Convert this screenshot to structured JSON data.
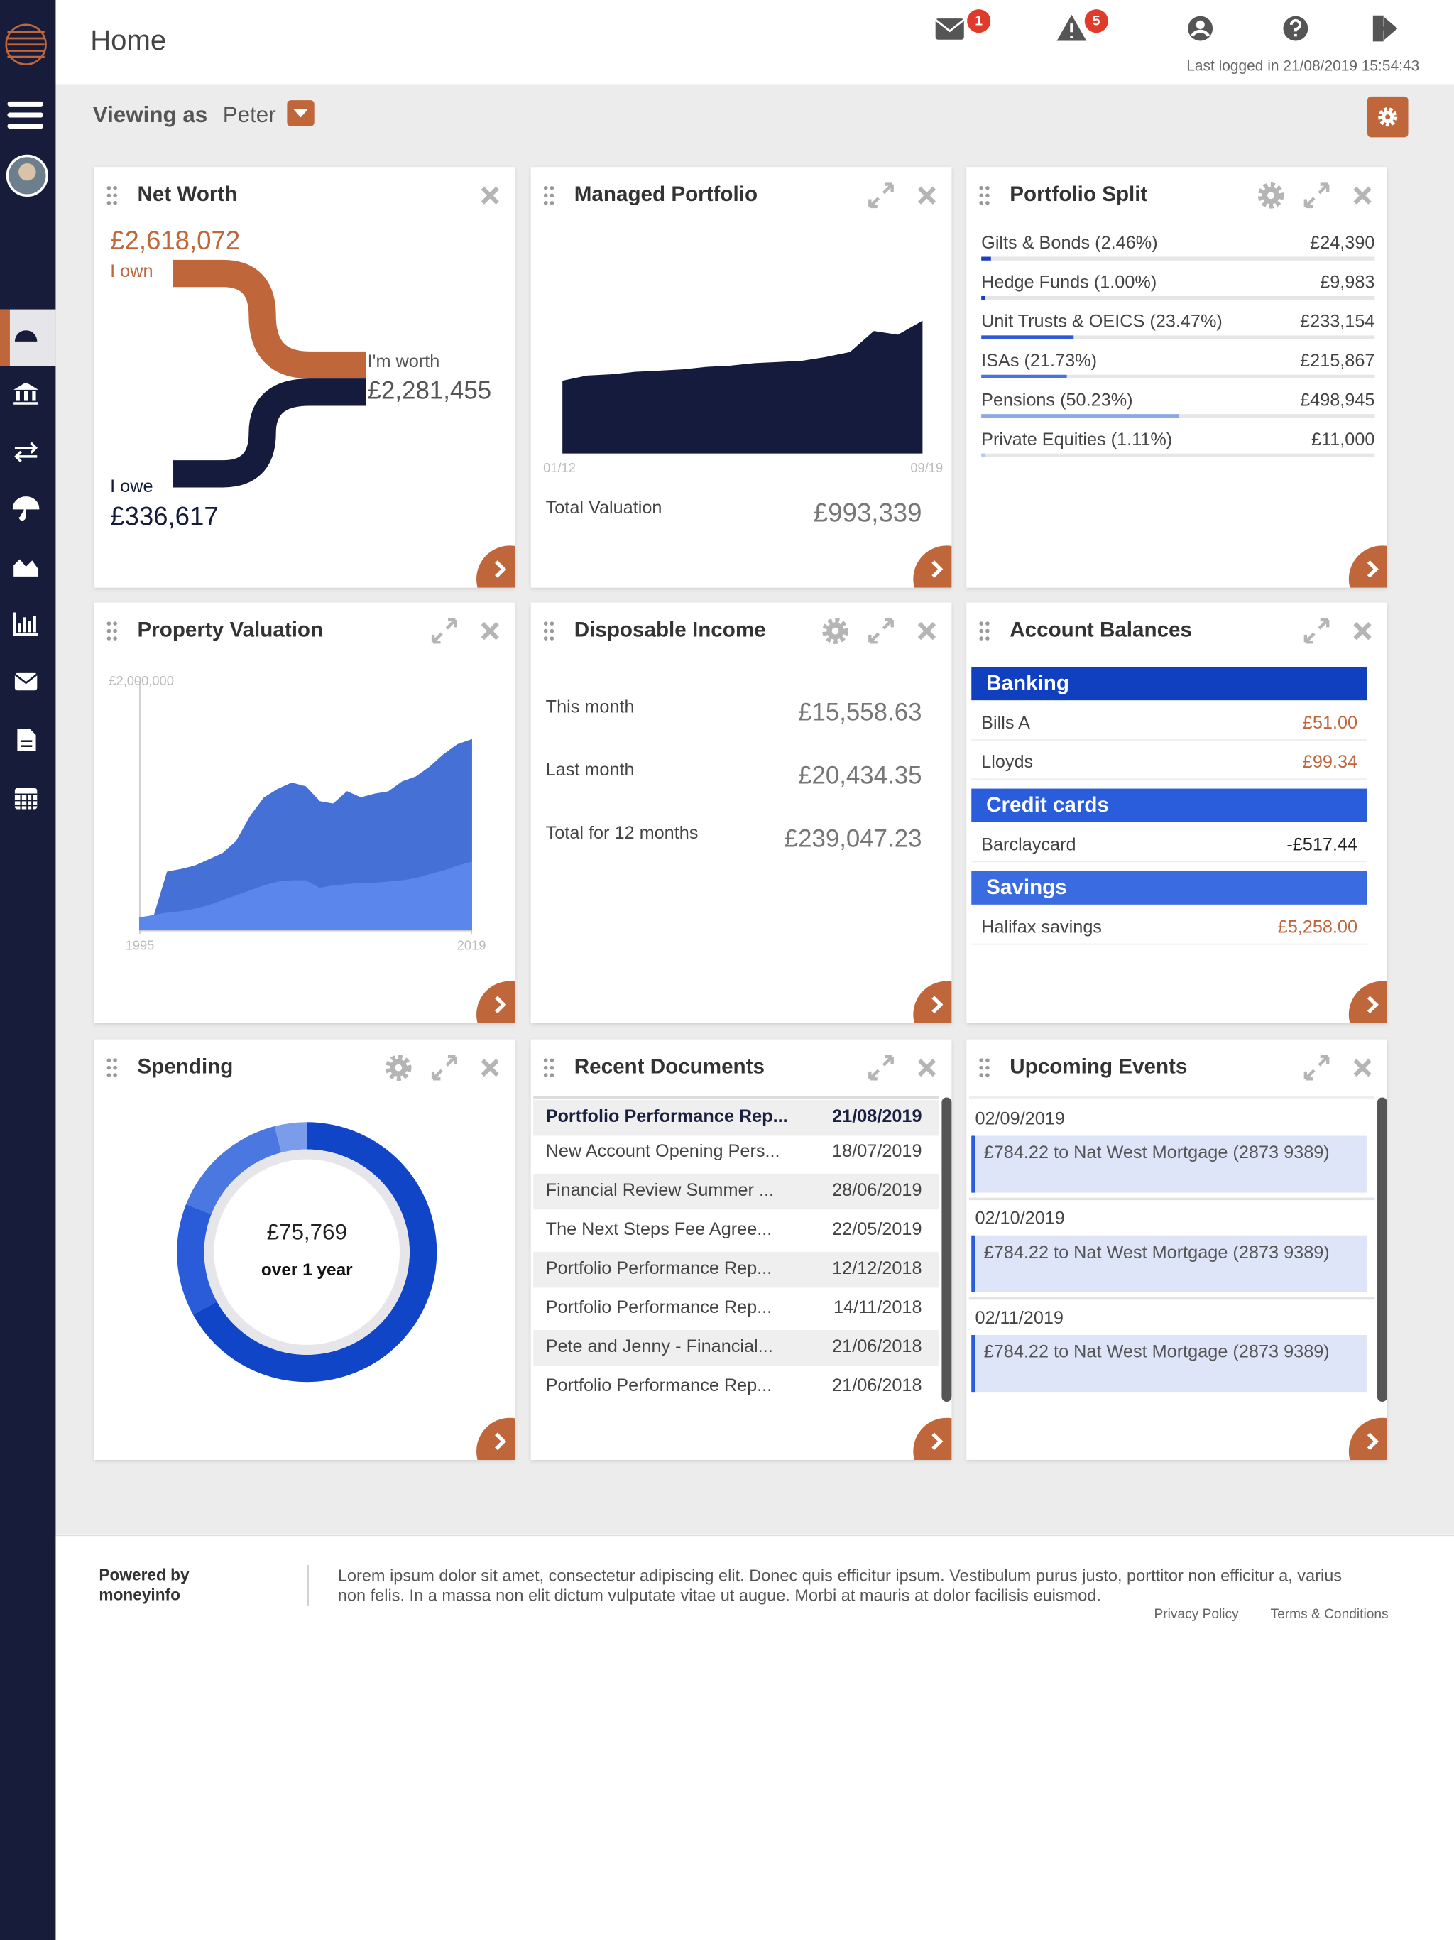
{
  "header": {
    "title": "Home",
    "mail_badge": 1,
    "alert_badge": 5,
    "last_logged": "Last logged in 21/08/2019 15:54:43"
  },
  "toolbar": {
    "viewing_as": "Viewing as",
    "user": "Peter"
  },
  "net_worth": {
    "title": "Net Worth",
    "own_value": "£2,618,072",
    "own_label": "I own",
    "worth_label": "I'm worth",
    "worth_value": "£2,281,455",
    "owe_label": "I owe",
    "owe_value": "£336,617"
  },
  "managed_portfolio": {
    "title": "Managed Portfolio",
    "chart": {
      "type": "area",
      "color": "#141b3c",
      "ylim": [
        0,
        1650000
      ],
      "categories": [
        "01/12",
        null,
        null,
        null,
        null,
        null,
        null,
        null,
        null,
        null,
        null,
        null,
        null,
        null,
        null,
        "09/19"
      ],
      "values": [
        543000,
        581000,
        590000,
        609000,
        618000,
        628000,
        647000,
        656000,
        675000,
        684000,
        693000,
        722000,
        759000,
        918000,
        890000,
        993000
      ]
    },
    "total_label": "Total Valuation",
    "total_value": "£993,339"
  },
  "portfolio_split": {
    "title": "Portfolio Split",
    "items": [
      {
        "label": "Gilts & Bonds (2.46%)",
        "value": "£24,390",
        "share": 2.46,
        "color": "#1d3fbf"
      },
      {
        "label": "Hedge Funds (1.00%)",
        "value": "£9,983",
        "share": 1.0,
        "color": "#1d3fbf"
      },
      {
        "label": "Unit Trusts & OEICS (23.47%)",
        "value": "£233,154",
        "share": 23.47,
        "color": "#2f5bd6"
      },
      {
        "label": "ISAs (21.73%)",
        "value": "£215,867",
        "share": 21.73,
        "color": "#4a72dc"
      },
      {
        "label": "Pensions (50.23%)",
        "value": "£498,945",
        "share": 50.23,
        "color": "#8ea7e8"
      },
      {
        "label": "Private Equities (1.11%)",
        "value": "£11,000",
        "share": 1.11,
        "color": "#b9c8f0"
      }
    ]
  },
  "property_valuation": {
    "title": "Property Valuation",
    "chart": {
      "type": "area",
      "xlim": [
        1995,
        2019
      ],
      "xticks": [
        1995,
        2019
      ],
      "ylim": [
        0,
        2000000
      ],
      "yticks": [
        {
          "value": 2000000,
          "label": "£2,000,000"
        }
      ],
      "x": [
        1995,
        1996,
        1997,
        1998,
        1999,
        2000,
        2001,
        2002,
        2003,
        2004,
        2005,
        2006,
        2007,
        2008,
        2009,
        2010,
        2011,
        2012,
        2013,
        2014,
        2015,
        2016,
        2017,
        2018,
        2019
      ],
      "series": [
        {
          "color": "#4570d6",
          "values": [
            100000,
            100000,
            468000,
            490000,
            517000,
            567000,
            617000,
            716000,
            915000,
            1065000,
            1134000,
            1184000,
            1154000,
            1035000,
            1015000,
            1114000,
            1065000,
            1095000,
            1114000,
            1194000,
            1234000,
            1313000,
            1413000,
            1493000,
            1532000
          ]
        },
        {
          "color": "#5b86ec",
          "values": [
            100000,
            119000,
            139000,
            149000,
            169000,
            199000,
            239000,
            279000,
            318000,
            358000,
            388000,
            398000,
            398000,
            338000,
            358000,
            368000,
            378000,
            378000,
            388000,
            398000,
            418000,
            448000,
            478000,
            517000,
            547000
          ]
        }
      ]
    }
  },
  "disposable_income": {
    "title": "Disposable Income",
    "rows": [
      {
        "label": "This month",
        "value": "£15,558.63"
      },
      {
        "label": "Last month",
        "value": "£20,434.35"
      },
      {
        "label": "Total for 12 months",
        "value": "£239,047.23"
      }
    ]
  },
  "account_balances": {
    "title": "Account Balances",
    "sections": [
      {
        "heading": "Banking",
        "color": "#1040c0",
        "rows": [
          {
            "name": "Bills A",
            "amount": "£51.00",
            "color": "#c0663b"
          },
          {
            "name": "Lloyds",
            "amount": "£99.34",
            "color": "#c0663b"
          }
        ]
      },
      {
        "heading": "Credit cards",
        "color": "#2a5ddc",
        "rows": [
          {
            "name": "Barclaycard",
            "amount": "-£517.44",
            "color": "#222222"
          }
        ]
      },
      {
        "heading": "Savings",
        "color": "#3a6be0",
        "rows": [
          {
            "name": "Halifax savings",
            "amount": "£5,258.00",
            "color": "#c0663b"
          }
        ]
      }
    ]
  },
  "spending": {
    "title": "Spending",
    "chart": {
      "type": "donut",
      "values": [
        67,
        14,
        15,
        4
      ],
      "colors": [
        "#1045c8",
        "#2a5bd8",
        "#4a78e0",
        "#7b9cea"
      ]
    },
    "total": "£75,769",
    "period": "over 1 year"
  },
  "recent_documents": {
    "title": "Recent Documents",
    "rows": [
      {
        "name": "Portfolio Performance Rep...",
        "date": "21/08/2019"
      },
      {
        "name": "New Account Opening Pers...",
        "date": "18/07/2019"
      },
      {
        "name": "Financial Review Summer ...",
        "date": "28/06/2019"
      },
      {
        "name": "The Next Steps Fee Agree...",
        "date": "22/05/2019"
      },
      {
        "name": "Portfolio Performance Rep...",
        "date": "12/12/2018"
      },
      {
        "name": "Portfolio Performance Rep...",
        "date": "14/11/2018"
      },
      {
        "name": "Pete and Jenny - Financial...",
        "date": "21/06/2018"
      },
      {
        "name": "Portfolio Performance Rep...",
        "date": "21/06/2018"
      }
    ]
  },
  "upcoming_events": {
    "title": "Upcoming Events",
    "events": [
      {
        "date": "02/09/2019",
        "description": "£784.22 to Nat West Mortgage (2873 9389)"
      },
      {
        "date": "02/10/2019",
        "description": "£784.22 to Nat West Mortgage (2873 9389)"
      },
      {
        "date": "02/11/2019",
        "description": "£784.22 to Nat West Mortgage (2873 9389)"
      }
    ]
  },
  "footer": {
    "powered_by": "Powered by",
    "brand": "moneyinfo",
    "text": "Lorem ipsum dolor sit amet, consectetur adipiscing elit. Donec quis efficitur ipsum. Vestibulum purus justo, porttitor non efficitur a, varius non felis. In a massa non elit dictum vulputate vitae ut augue. Morbi at mauris at dolor facilisis euismod.",
    "privacy": "Privacy Policy",
    "terms": "Terms & Conditions"
  }
}
